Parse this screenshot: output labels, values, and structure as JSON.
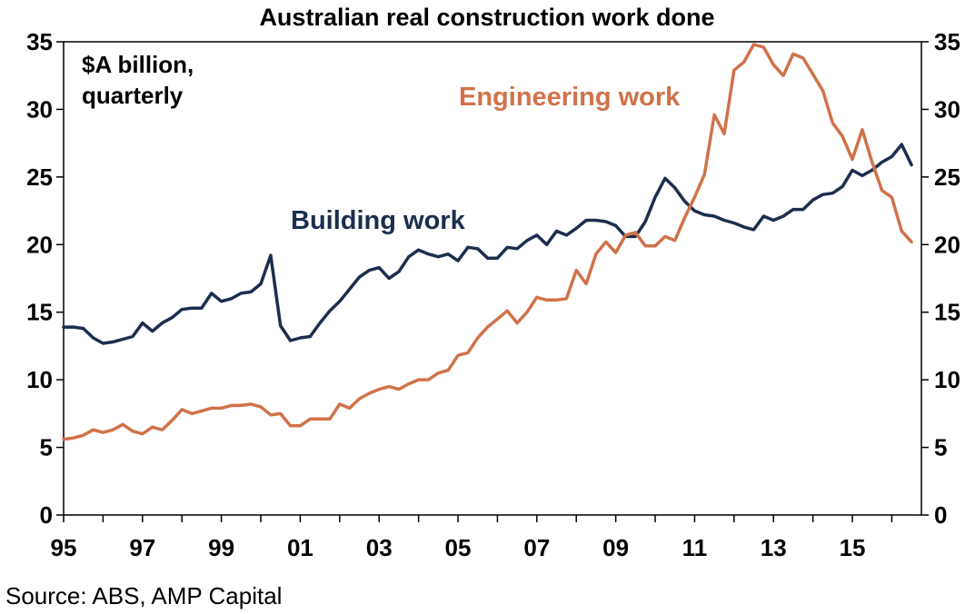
{
  "chart_data": {
    "type": "line",
    "title": "Australian real construction work done",
    "unit_label": [
      "$A billion,",
      "quarterly"
    ],
    "source": "Source: ABS, AMP Capital",
    "ylim": [
      0,
      35
    ],
    "y_ticks_left": [
      "0",
      "5",
      "10",
      "15",
      "20",
      "25",
      "30",
      "35"
    ],
    "y_ticks_right": [
      "0",
      "5",
      "10",
      "15",
      "20",
      "25",
      "30",
      "35"
    ],
    "y_tick_values": [
      0,
      5,
      10,
      15,
      20,
      25,
      30,
      35
    ],
    "x_tick_labels": [
      "95",
      "97",
      "99",
      "01",
      "03",
      "05",
      "07",
      "09",
      "11",
      "13",
      "15"
    ],
    "x_tick_years": [
      1995,
      1997,
      1999,
      2001,
      2003,
      2005,
      2007,
      2009,
      2011,
      2013,
      2015
    ],
    "x_range": [
      1995.0,
      2016.75
    ],
    "grid": false,
    "series": [
      {
        "name": "Building work",
        "color": "#1c2e4e",
        "x": [
          1995.0,
          1995.25,
          1995.5,
          1995.75,
          1996.0,
          1996.25,
          1996.5,
          1996.75,
          1997.0,
          1997.25,
          1997.5,
          1997.75,
          1998.0,
          1998.25,
          1998.5,
          1998.75,
          1999.0,
          1999.25,
          1999.5,
          1999.75,
          2000.0,
          2000.25,
          2000.5,
          2000.75,
          2001.0,
          2001.25,
          2001.5,
          2001.75,
          2002.0,
          2002.25,
          2002.5,
          2002.75,
          2003.0,
          2003.25,
          2003.5,
          2003.75,
          2004.0,
          2004.25,
          2004.5,
          2004.75,
          2005.0,
          2005.25,
          2005.5,
          2005.75,
          2006.0,
          2006.25,
          2006.5,
          2006.75,
          2007.0,
          2007.25,
          2007.5,
          2007.75,
          2008.0,
          2008.25,
          2008.5,
          2008.75,
          2009.0,
          2009.25,
          2009.5,
          2009.75,
          2010.0,
          2010.25,
          2010.5,
          2010.75,
          2011.0,
          2011.25,
          2011.5,
          2011.75,
          2012.0,
          2012.25,
          2012.5,
          2012.75,
          2013.0,
          2013.25,
          2013.5,
          2013.75,
          2014.0,
          2014.25,
          2014.5,
          2014.75,
          2015.0,
          2015.25,
          2015.5,
          2015.75,
          2016.0,
          2016.25,
          2016.5
        ],
        "values": [
          13.9,
          13.9,
          13.8,
          13.1,
          12.7,
          12.8,
          13.0,
          13.2,
          14.2,
          13.6,
          14.2,
          14.6,
          15.2,
          15.3,
          15.3,
          16.4,
          15.8,
          16.0,
          16.4,
          16.5,
          17.1,
          19.2,
          14.0,
          12.9,
          13.1,
          13.2,
          14.2,
          15.1,
          15.8,
          16.7,
          17.6,
          18.1,
          18.3,
          17.5,
          18.0,
          19.1,
          19.6,
          19.3,
          19.1,
          19.3,
          18.8,
          19.8,
          19.7,
          19.0,
          19.0,
          19.8,
          19.7,
          20.3,
          20.7,
          20.0,
          21.0,
          20.7,
          21.2,
          21.8,
          21.8,
          21.7,
          21.4,
          20.6,
          20.6,
          21.7,
          23.5,
          24.9,
          24.2,
          23.2,
          22.5,
          22.2,
          22.1,
          21.8,
          21.6,
          21.3,
          21.1,
          22.1,
          21.8,
          22.1,
          22.6,
          22.6,
          23.3,
          23.7,
          23.8,
          24.3,
          25.5,
          25.1,
          25.5,
          26.1,
          26.5,
          27.4,
          25.9
        ]
      },
      {
        "name": "Engineering work",
        "color": "#d0724a",
        "x": [
          1995.0,
          1995.25,
          1995.5,
          1995.75,
          1996.0,
          1996.25,
          1996.5,
          1996.75,
          1997.0,
          1997.25,
          1997.5,
          1997.75,
          1998.0,
          1998.25,
          1998.5,
          1998.75,
          1999.0,
          1999.25,
          1999.5,
          1999.75,
          2000.0,
          2000.25,
          2000.5,
          2000.75,
          2001.0,
          2001.25,
          2001.5,
          2001.75,
          2002.0,
          2002.25,
          2002.5,
          2002.75,
          2003.0,
          2003.25,
          2003.5,
          2003.75,
          2004.0,
          2004.25,
          2004.5,
          2004.75,
          2005.0,
          2005.25,
          2005.5,
          2005.75,
          2006.0,
          2006.25,
          2006.5,
          2006.75,
          2007.0,
          2007.25,
          2007.5,
          2007.75,
          2008.0,
          2008.25,
          2008.5,
          2008.75,
          2009.0,
          2009.25,
          2009.5,
          2009.75,
          2010.0,
          2010.25,
          2010.5,
          2010.75,
          2011.0,
          2011.25,
          2011.5,
          2011.75,
          2012.0,
          2012.25,
          2012.5,
          2012.75,
          2013.0,
          2013.25,
          2013.5,
          2013.75,
          2014.0,
          2014.25,
          2014.5,
          2014.75,
          2015.0,
          2015.25,
          2015.5,
          2015.75,
          2016.0,
          2016.25,
          2016.5
        ],
        "values": [
          5.6,
          5.7,
          5.9,
          6.3,
          6.1,
          6.3,
          6.7,
          6.2,
          6.0,
          6.5,
          6.3,
          7.0,
          7.8,
          7.5,
          7.7,
          7.9,
          7.9,
          8.1,
          8.1,
          8.2,
          8.0,
          7.4,
          7.5,
          6.6,
          6.6,
          7.1,
          7.1,
          7.1,
          8.2,
          7.9,
          8.6,
          9.0,
          9.3,
          9.5,
          9.3,
          9.7,
          10.0,
          10.0,
          10.5,
          10.7,
          11.8,
          12.0,
          13.1,
          13.9,
          14.5,
          15.1,
          14.2,
          15.0,
          16.1,
          15.9,
          15.9,
          16.0,
          18.1,
          17.1,
          19.3,
          20.2,
          19.4,
          20.7,
          20.9,
          19.9,
          19.9,
          20.6,
          20.3,
          22.0,
          23.5,
          25.2,
          29.6,
          28.2,
          32.9,
          33.5,
          34.8,
          34.6,
          33.3,
          32.5,
          34.1,
          33.8,
          32.6,
          31.4,
          29.0,
          28.0,
          26.3,
          28.5,
          26.1,
          24.0,
          23.5,
          21.0,
          20.2
        ]
      }
    ],
    "annotations": [
      {
        "text": "Building work",
        "series": "Building work"
      },
      {
        "text": "Engineering work",
        "series": "Engineering work"
      }
    ]
  }
}
